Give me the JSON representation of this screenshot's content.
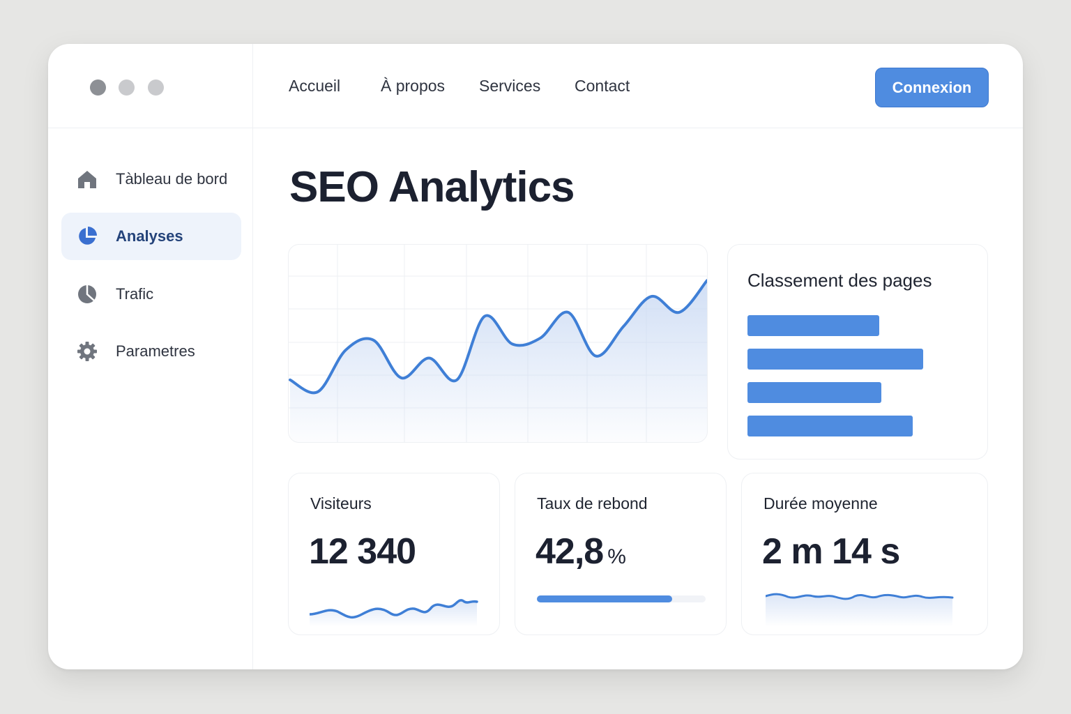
{
  "window": {
    "controls": [
      "close",
      "minimize",
      "zoom"
    ]
  },
  "nav": {
    "links": [
      "Accueil",
      "À propos",
      "Services",
      "Contact"
    ],
    "login_label": "Connexion"
  },
  "sidebar": {
    "items": [
      {
        "label": "Tàbleau de bord",
        "icon": "home-icon",
        "active": false
      },
      {
        "label": "Analyses",
        "icon": "pie-chart-icon",
        "active": true
      },
      {
        "label": "Trafic",
        "icon": "traffic-chart-icon",
        "active": false
      },
      {
        "label": "Parametres",
        "icon": "gear-icon",
        "active": false
      }
    ]
  },
  "main": {
    "title": "SEO Analytics",
    "ranking": {
      "title": "Classement des pages",
      "bars": [
        0.63,
        0.84,
        0.64,
        0.79
      ]
    },
    "stats": [
      {
        "label": "Visiteurs",
        "value": "12 340",
        "unit": ""
      },
      {
        "label": "Taux de rebond",
        "value": "42,8",
        "unit": "%",
        "progress": 0.8
      },
      {
        "label": "Durée moyenne",
        "value": "2 m 14 s",
        "unit": ""
      }
    ]
  },
  "colors": {
    "accent": "#4f8ce0",
    "active_bg": "#eef3fb",
    "text": "#1f2430"
  },
  "chart_data": {
    "type": "line",
    "title": "",
    "series": [
      {
        "values": [
          32,
          26,
          47,
          52,
          33,
          43,
          32,
          64,
          50,
          53,
          66,
          44,
          59,
          74,
          66,
          82
        ]
      }
    ],
    "ylim": [
      0,
      100
    ],
    "grid": true
  }
}
